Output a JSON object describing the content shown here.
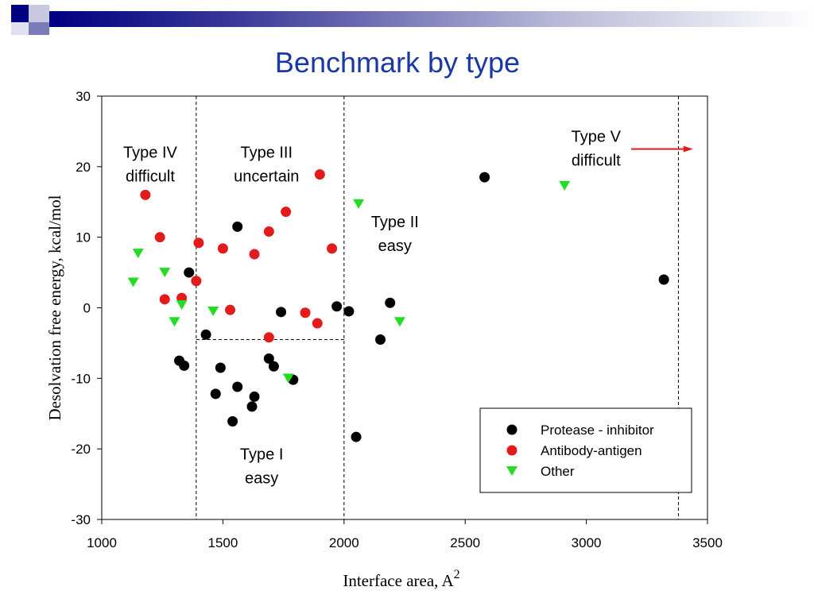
{
  "slide": {
    "title": "Benchmark by type",
    "decor_colors": [
      "#000080",
      "#7b7bb8",
      "#b5b5d6"
    ]
  },
  "chart_data": {
    "type": "scatter",
    "title": "",
    "xlabel": "Interface area, A",
    "xlabel_superscript": "2",
    "ylabel": "Desolvation free energy, kcal/mol",
    "xlim": [
      1000,
      3500
    ],
    "ylim": [
      -30,
      30
    ],
    "x_ticks": [
      1000,
      1500,
      2000,
      2500,
      3000,
      3500
    ],
    "y_ticks": [
      -30,
      -20,
      -10,
      0,
      10,
      20,
      30
    ],
    "grid": false,
    "legend_position": "bottom-right",
    "series": [
      {
        "name": "Protease - inhibitor",
        "marker": "circle",
        "color": "#000000",
        "points": [
          [
            1360,
            5
          ],
          [
            1560,
            11.5
          ],
          [
            1430,
            -3.8
          ],
          [
            1320,
            -7.5
          ],
          [
            1340,
            -8.2
          ],
          [
            1490,
            -8.5
          ],
          [
            1470,
            -12.2
          ],
          [
            1560,
            -11.2
          ],
          [
            1540,
            -16.1
          ],
          [
            1620,
            -14
          ],
          [
            1630,
            -12.6
          ],
          [
            1690,
            -7.2
          ],
          [
            1710,
            -8.3
          ],
          [
            1790,
            -10.2
          ],
          [
            1740,
            -0.6
          ],
          [
            1970,
            0.2
          ],
          [
            2020,
            -0.5
          ],
          [
            2190,
            0.7
          ],
          [
            2150,
            -4.5
          ],
          [
            2050,
            -18.3
          ],
          [
            2580,
            18.5
          ],
          [
            3320,
            4
          ]
        ]
      },
      {
        "name": "Antibody-antigen",
        "marker": "circle",
        "color": "#e31b1b",
        "points": [
          [
            1180,
            16
          ],
          [
            1240,
            10
          ],
          [
            1260,
            1.2
          ],
          [
            1330,
            1.4
          ],
          [
            1390,
            3.8
          ],
          [
            1400,
            9.2
          ],
          [
            1500,
            8.4
          ],
          [
            1530,
            -0.3
          ],
          [
            1630,
            7.6
          ],
          [
            1690,
            10.8
          ],
          [
            1760,
            13.6
          ],
          [
            1690,
            -4.2
          ],
          [
            1840,
            -0.7
          ],
          [
            1890,
            -2.2
          ],
          [
            1900,
            18.9
          ],
          [
            1950,
            8.4
          ]
        ]
      },
      {
        "name": "Other",
        "marker": "triangle-down",
        "color": "#22dd22",
        "points": [
          [
            1130,
            3.6
          ],
          [
            1150,
            7.7
          ],
          [
            1260,
            5
          ],
          [
            1300,
            -2
          ],
          [
            1330,
            0.4
          ],
          [
            1460,
            -0.5
          ],
          [
            1770,
            -10
          ],
          [
            2060,
            14.7
          ],
          [
            2230,
            -2
          ],
          [
            2910,
            17.3
          ]
        ]
      }
    ],
    "dividers": {
      "vertical_x": [
        1390,
        2000,
        3380
      ],
      "horizontal": {
        "y": -4.5,
        "x_from": 1390,
        "x_to": 2000
      }
    },
    "region_labels": [
      {
        "line1": "Type IV",
        "line2": "difficult",
        "color": "#000000",
        "anchor": [
          1200,
          21.3
        ]
      },
      {
        "line1": "Type III",
        "line2": "uncertain",
        "color": "#000000",
        "anchor": [
          1680,
          21.3
        ]
      },
      {
        "line1": "Type II",
        "line2": "easy",
        "color": "#000000",
        "anchor": [
          2210,
          11.4
        ]
      },
      {
        "line1": "Type I",
        "line2": "easy",
        "color": "#000000",
        "anchor": [
          1660,
          -21.5
        ]
      },
      {
        "line1": "Type V",
        "line2": "difficult",
        "color": "#e31b1b",
        "anchor": [
          3040,
          23.5
        ]
      }
    ],
    "arrow": {
      "from": [
        3185,
        22.5
      ],
      "to": [
        3440,
        22.5
      ],
      "color": "#e31b1b"
    }
  }
}
